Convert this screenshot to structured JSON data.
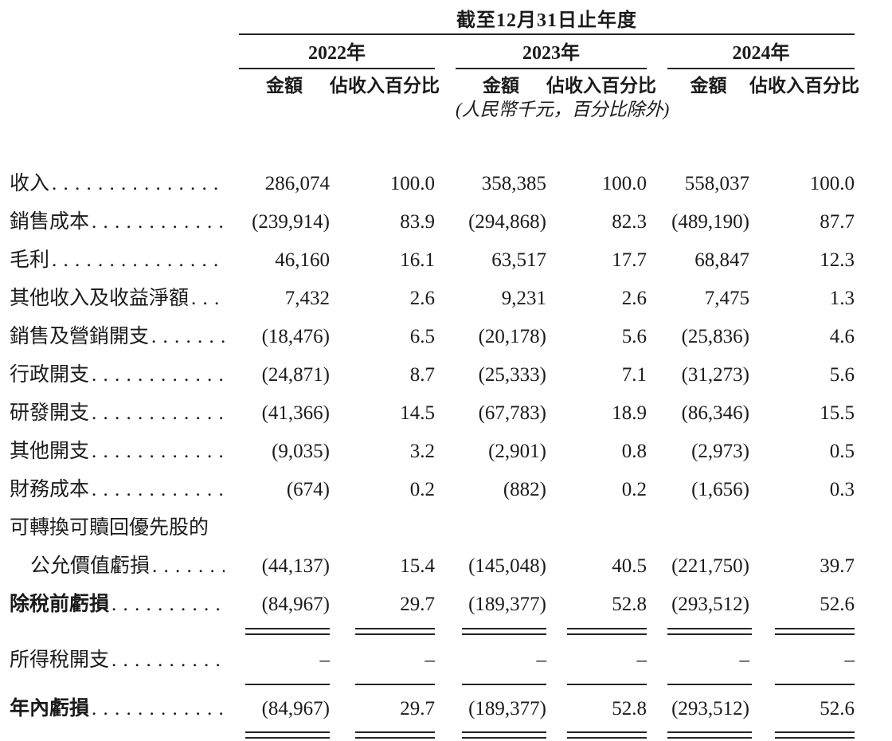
{
  "document": {
    "text_color": "#1b1b1b",
    "rule_color": "#242424",
    "table": {
      "title": "截至12月31日止年度",
      "unit_note": "(人民幣千元，百分比除外)",
      "year_groups": [
        {
          "year": "2022年",
          "amount_label": "金額",
          "percent_label": "佔收入百分比"
        },
        {
          "year": "2023年",
          "amount_label": "金額",
          "percent_label": "佔收入百分比"
        },
        {
          "year": "2024年",
          "amount_label": "金額",
          "percent_label": "佔收入百分比"
        }
      ],
      "rows": [
        {
          "label": "收入",
          "values": [
            "286,074",
            "100.0",
            "358,385",
            "100.0",
            "558,037",
            "100.0"
          ]
        },
        {
          "label": "銷售成本",
          "values": [
            "(239,914)",
            "83.9",
            "(294,868)",
            "82.3",
            "(489,190)",
            "87.7"
          ]
        },
        {
          "label": "毛利",
          "values": [
            "46,160",
            "16.1",
            "63,517",
            "17.7",
            "68,847",
            "12.3"
          ]
        },
        {
          "label": "其他收入及收益淨額",
          "values": [
            "7,432",
            "2.6",
            "9,231",
            "2.6",
            "7,475",
            "1.3"
          ]
        },
        {
          "label": "銷售及營銷開支",
          "values": [
            "(18,476)",
            "6.5",
            "(20,178)",
            "5.6",
            "(25,836)",
            "4.6"
          ]
        },
        {
          "label": "行政開支",
          "values": [
            "(24,871)",
            "8.7",
            "(25,333)",
            "7.1",
            "(31,273)",
            "5.6"
          ]
        },
        {
          "label": "研發開支",
          "values": [
            "(41,366)",
            "14.5",
            "(67,783)",
            "18.9",
            "(86,346)",
            "15.5"
          ]
        },
        {
          "label": "其他開支",
          "values": [
            "(9,035)",
            "3.2",
            "(2,901)",
            "0.8",
            "(2,973)",
            "0.5"
          ]
        },
        {
          "label": "財務成本",
          "values": [
            "(674)",
            "0.2",
            "(882)",
            "0.2",
            "(1,656)",
            "0.3"
          ]
        },
        {
          "label": "可轉換可贖回優先股的",
          "values": []
        },
        {
          "label": "公允價值虧損",
          "values": [
            "(44,137)",
            "15.4",
            "(145,048)",
            "40.5",
            "(221,750)",
            "39.7"
          ]
        },
        {
          "label": "除稅前虧損",
          "values": [
            "(84,967)",
            "29.7",
            "(189,377)",
            "52.8",
            "(293,512)",
            "52.6"
          ]
        },
        {
          "label": "所得稅開支",
          "values": [
            "–",
            "–",
            "–",
            "–",
            "–",
            "–"
          ]
        },
        {
          "label": "年內虧損",
          "values": [
            "(84,967)",
            "29.7",
            "(189,377)",
            "52.8",
            "(293,512)",
            "52.6"
          ]
        }
      ]
    }
  }
}
